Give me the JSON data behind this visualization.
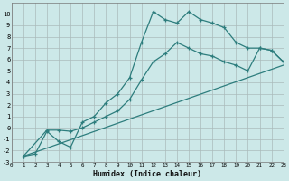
{
  "bg_color": "#cce8e8",
  "grid_color": "#aabbbb",
  "line_color": "#2d7d7d",
  "xlabel": "Humidex (Indice chaleur)",
  "xlim": [
    0,
    23
  ],
  "ylim": [
    -3,
    11
  ],
  "xticks": [
    0,
    1,
    2,
    3,
    4,
    5,
    6,
    7,
    8,
    9,
    10,
    11,
    12,
    13,
    14,
    15,
    16,
    17,
    18,
    19,
    20,
    21,
    22,
    23
  ],
  "yticks": [
    -3,
    -2,
    -1,
    0,
    1,
    2,
    3,
    4,
    5,
    6,
    7,
    8,
    9,
    10
  ],
  "curve1_x": [
    1,
    2,
    3,
    4,
    5,
    6,
    7,
    8,
    9,
    10,
    11,
    12,
    13,
    14,
    15,
    16,
    17,
    18,
    19,
    20,
    21,
    22,
    23
  ],
  "curve1_y": [
    -2.5,
    -2.3,
    -0.3,
    -1.2,
    -1.7,
    0.5,
    1.0,
    2.2,
    3.0,
    4.4,
    7.5,
    10.2,
    9.5,
    9.2,
    10.2,
    9.5,
    9.2,
    8.8,
    7.5,
    7.0,
    7.0,
    6.8,
    5.8
  ],
  "curve2_x": [
    1,
    3,
    4,
    5,
    6,
    7,
    8,
    9,
    10,
    11,
    12,
    13,
    14,
    15,
    16,
    17,
    18,
    19,
    20,
    21,
    22,
    23
  ],
  "curve2_y": [
    -2.5,
    -0.2,
    -0.2,
    -0.3,
    0.0,
    0.5,
    1.0,
    1.5,
    2.5,
    4.2,
    5.8,
    6.5,
    7.5,
    7.0,
    6.5,
    6.3,
    5.8,
    5.5,
    5.0,
    7.0,
    6.8,
    5.8
  ],
  "line3_x": [
    1,
    23
  ],
  "line3_y": [
    -2.5,
    5.5
  ]
}
